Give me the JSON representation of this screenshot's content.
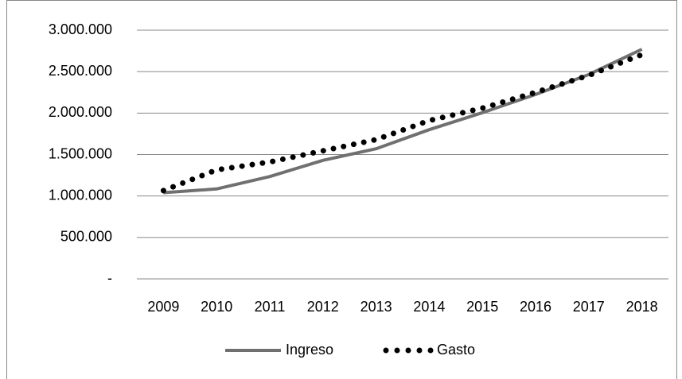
{
  "chart_data": {
    "type": "line",
    "categories": [
      "2009",
      "2010",
      "2011",
      "2012",
      "2013",
      "2014",
      "2015",
      "2016",
      "2017",
      "2018"
    ],
    "series": [
      {
        "name": "Ingreso",
        "color": "#707070",
        "style": "solid",
        "values": [
          1040000,
          1085000,
          1235000,
          1430000,
          1570000,
          1800000,
          2005000,
          2225000,
          2465000,
          2770000
        ]
      },
      {
        "name": "Gasto",
        "color": "#000000",
        "style": "dotted",
        "values": [
          1065000,
          1315000,
          1410000,
          1545000,
          1680000,
          1910000,
          2060000,
          2250000,
          2455000,
          2705000
        ]
      }
    ],
    "ylim": [
      0,
      3000000
    ],
    "yticks": [
      {
        "value": 0,
        "label": "-"
      },
      {
        "value": 500000,
        "label": "500.000"
      },
      {
        "value": 1000000,
        "label": "1.000.000"
      },
      {
        "value": 1500000,
        "label": "1.500.000"
      },
      {
        "value": 2000000,
        "label": "2.000.000"
      },
      {
        "value": 2500000,
        "label": "2.500.000"
      },
      {
        "value": 3000000,
        "label": "3.000.000"
      }
    ],
    "grid": true,
    "legend": "bottom"
  }
}
